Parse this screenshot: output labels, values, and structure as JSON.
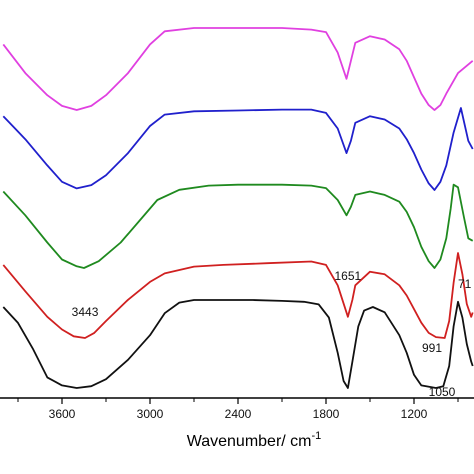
{
  "chart_data": {
    "type": "line",
    "title": "",
    "xlabel": "Wavenumber/ cm",
    "xlabel_superscript": "-1",
    "ylabel": "",
    "xlim": [
      4000,
      400
    ],
    "x_reversed": true,
    "y_axis_visible": false,
    "grid": false,
    "legend": "none",
    "x_ticks": [
      3600,
      3000,
      2400,
      1800,
      1200
    ],
    "x_tick_labels": [
      "3600",
      "3000",
      "2400",
      "1800",
      "1200"
    ],
    "series": [
      {
        "color": "#e040e0",
        "points": [
          [
            4000,
            0.8
          ],
          [
            3850,
            0.45
          ],
          [
            3700,
            0.18
          ],
          [
            3600,
            0.05
          ],
          [
            3500,
            0.0
          ],
          [
            3400,
            0.05
          ],
          [
            3300,
            0.18
          ],
          [
            3150,
            0.45
          ],
          [
            3000,
            0.8
          ],
          [
            2900,
            0.96
          ],
          [
            2700,
            1.0
          ],
          [
            2400,
            1.0
          ],
          [
            2100,
            1.0
          ],
          [
            1900,
            0.98
          ],
          [
            1800,
            0.95
          ],
          [
            1720,
            0.7
          ],
          [
            1660,
            0.38
          ],
          [
            1630,
            0.6
          ],
          [
            1600,
            0.82
          ],
          [
            1500,
            0.9
          ],
          [
            1400,
            0.86
          ],
          [
            1300,
            0.74
          ],
          [
            1250,
            0.6
          ],
          [
            1200,
            0.4
          ],
          [
            1150,
            0.2
          ],
          [
            1100,
            0.06
          ],
          [
            1060,
            0.0
          ],
          [
            1020,
            0.06
          ],
          [
            980,
            0.2
          ],
          [
            900,
            0.45
          ],
          [
            800,
            0.6
          ]
        ]
      },
      {
        "color": "#2020cc",
        "points": [
          [
            4000,
            0.9
          ],
          [
            3850,
            0.62
          ],
          [
            3700,
            0.3
          ],
          [
            3600,
            0.1
          ],
          [
            3500,
            0.02
          ],
          [
            3400,
            0.06
          ],
          [
            3300,
            0.18
          ],
          [
            3150,
            0.45
          ],
          [
            3000,
            0.78
          ],
          [
            2900,
            0.92
          ],
          [
            2700,
            0.96
          ],
          [
            2400,
            0.97
          ],
          [
            2100,
            0.98
          ],
          [
            1900,
            0.98
          ],
          [
            1800,
            0.94
          ],
          [
            1720,
            0.75
          ],
          [
            1660,
            0.45
          ],
          [
            1630,
            0.6
          ],
          [
            1600,
            0.82
          ],
          [
            1500,
            0.9
          ],
          [
            1400,
            0.86
          ],
          [
            1300,
            0.75
          ],
          [
            1250,
            0.62
          ],
          [
            1200,
            0.45
          ],
          [
            1150,
            0.25
          ],
          [
            1100,
            0.08
          ],
          [
            1060,
            0.0
          ],
          [
            1020,
            0.1
          ],
          [
            980,
            0.3
          ],
          [
            930,
            0.7
          ],
          [
            880,
            1.0
          ],
          [
            830,
            0.6
          ],
          [
            800,
            0.5
          ]
        ]
      },
      {
        "color": "#1f8a1f",
        "points": [
          [
            4000,
            0.9
          ],
          [
            3850,
            0.62
          ],
          [
            3700,
            0.3
          ],
          [
            3600,
            0.1
          ],
          [
            3500,
            0.02
          ],
          [
            3450,
            0.0
          ],
          [
            3350,
            0.08
          ],
          [
            3200,
            0.3
          ],
          [
            3050,
            0.6
          ],
          [
            2950,
            0.8
          ],
          [
            2800,
            0.92
          ],
          [
            2600,
            0.97
          ],
          [
            2400,
            0.98
          ],
          [
            2100,
            0.98
          ],
          [
            1900,
            0.97
          ],
          [
            1800,
            0.94
          ],
          [
            1720,
            0.8
          ],
          [
            1660,
            0.62
          ],
          [
            1630,
            0.72
          ],
          [
            1600,
            0.86
          ],
          [
            1500,
            0.9
          ],
          [
            1400,
            0.86
          ],
          [
            1300,
            0.78
          ],
          [
            1250,
            0.66
          ],
          [
            1200,
            0.48
          ],
          [
            1150,
            0.25
          ],
          [
            1100,
            0.08
          ],
          [
            1060,
            0.0
          ],
          [
            1020,
            0.1
          ],
          [
            980,
            0.35
          ],
          [
            950,
            0.7
          ],
          [
            930,
            0.98
          ],
          [
            900,
            0.95
          ],
          [
            860,
            0.6
          ],
          [
            830,
            0.35
          ],
          [
            800,
            0.32
          ]
        ]
      },
      {
        "color": "#d02020",
        "points": [
          [
            4000,
            0.86
          ],
          [
            3850,
            0.55
          ],
          [
            3700,
            0.25
          ],
          [
            3600,
            0.1
          ],
          [
            3520,
            0.02
          ],
          [
            3443,
            0.0
          ],
          [
            3380,
            0.06
          ],
          [
            3300,
            0.2
          ],
          [
            3150,
            0.45
          ],
          [
            3000,
            0.66
          ],
          [
            2900,
            0.76
          ],
          [
            2700,
            0.84
          ],
          [
            2500,
            0.86
          ],
          [
            2200,
            0.88
          ],
          [
            1900,
            0.9
          ],
          [
            1800,
            0.86
          ],
          [
            1720,
            0.62
          ],
          [
            1651,
            0.25
          ],
          [
            1620,
            0.45
          ],
          [
            1600,
            0.62
          ],
          [
            1500,
            0.78
          ],
          [
            1400,
            0.75
          ],
          [
            1300,
            0.62
          ],
          [
            1250,
            0.5
          ],
          [
            1200,
            0.34
          ],
          [
            1150,
            0.18
          ],
          [
            1100,
            0.06
          ],
          [
            1050,
            0.01
          ],
          [
            991,
            0.0
          ],
          [
            960,
            0.2
          ],
          [
            930,
            0.65
          ],
          [
            900,
            1.0
          ],
          [
            870,
            0.75
          ],
          [
            840,
            0.4
          ],
          [
            810,
            0.25
          ],
          [
            800,
            0.3
          ]
        ]
      },
      {
        "color": "#111111",
        "points": [
          [
            4000,
            0.92
          ],
          [
            3900,
            0.74
          ],
          [
            3800,
            0.45
          ],
          [
            3700,
            0.12
          ],
          [
            3600,
            0.03
          ],
          [
            3500,
            0.0
          ],
          [
            3400,
            0.02
          ],
          [
            3300,
            0.1
          ],
          [
            3150,
            0.32
          ],
          [
            3000,
            0.6
          ],
          [
            2900,
            0.85
          ],
          [
            2800,
            0.97
          ],
          [
            2700,
            1.0
          ],
          [
            2500,
            1.0
          ],
          [
            2300,
            1.0
          ],
          [
            2100,
            0.99
          ],
          [
            1950,
            0.98
          ],
          [
            1850,
            0.95
          ],
          [
            1780,
            0.8
          ],
          [
            1720,
            0.4
          ],
          [
            1680,
            0.08
          ],
          [
            1651,
            0.0
          ],
          [
            1620,
            0.3
          ],
          [
            1580,
            0.7
          ],
          [
            1540,
            0.88
          ],
          [
            1480,
            0.92
          ],
          [
            1400,
            0.86
          ],
          [
            1300,
            0.6
          ],
          [
            1250,
            0.4
          ],
          [
            1200,
            0.15
          ],
          [
            1150,
            0.03
          ],
          [
            1050,
            0.0
          ],
          [
            1000,
            0.02
          ],
          [
            960,
            0.25
          ],
          [
            930,
            0.7
          ],
          [
            900,
            0.98
          ],
          [
            870,
            0.8
          ],
          [
            840,
            0.5
          ],
          [
            810,
            0.3
          ],
          [
            800,
            0.25
          ]
        ]
      }
    ],
    "annotations": [
      {
        "text": "3443",
        "x": 3443
      },
      {
        "text": "1651",
        "x": 1651
      },
      {
        "text": "991",
        "x": 991
      },
      {
        "text": "1050",
        "x": 1050
      },
      {
        "text": "71",
        "x": 720
      }
    ]
  }
}
